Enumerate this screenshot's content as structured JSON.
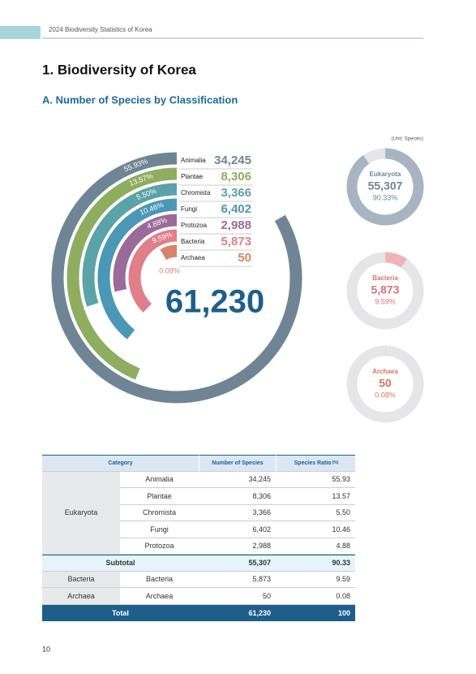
{
  "header": "2024 Biodiversity Statistics of Korea",
  "title": "1. Biodiversity of Korea",
  "subtitle": "A. Number of Species by Classification",
  "chart_data": [
    {
      "type": "radial-bar",
      "unit": "(Unit: Species)",
      "categories": [
        "Animalia",
        "Plantae",
        "Chromista",
        "Fungi",
        "Protozoa",
        "Bacteria",
        "Archaea"
      ],
      "counts": [
        "34,245",
        "8,306",
        "3,366",
        "6,402",
        "2,988",
        "5,873",
        "50"
      ],
      "values": [
        55.93,
        13.57,
        5.5,
        10.46,
        4.88,
        9.59,
        0.08
      ],
      "value_labels": [
        "55.93%",
        "13.57%",
        "5.50%",
        "10.46%",
        "4.88%",
        "9.59%",
        "0.08%"
      ],
      "colors": [
        "#6f8596",
        "#8fad5f",
        "#5aa3a8",
        "#4b97b6",
        "#9a6b9a",
        "#e07f8a",
        "#d9826a"
      ],
      "total": "61,230"
    },
    {
      "type": "donut",
      "categories": [
        "Eukaryota",
        "Bacteria",
        "Archaea"
      ],
      "counts": [
        "55,307",
        "5,873",
        "50"
      ],
      "values": [
        90.33,
        9.59,
        0.08
      ],
      "value_labels": [
        "90.33%",
        "9.59%",
        "0.08%"
      ],
      "colors": [
        "#a9b4c2",
        "#efb3b8",
        "#e0a08d"
      ],
      "text_colors": [
        "#6f8596",
        "#d9707c",
        "#d0785e"
      ]
    }
  ],
  "table": {
    "columns": [
      "Category",
      "Number of Species",
      "Species Ratio"
    ],
    "ratio_unit": "(%)",
    "group": "Eukaryota",
    "group_rows": [
      [
        "Animalia",
        "34,245",
        "55.93"
      ],
      [
        "Plantae",
        "8,306",
        "13.57"
      ],
      [
        "Chromista",
        "3,366",
        "5.50"
      ],
      [
        "Fungi",
        "6,402",
        "10.46"
      ],
      [
        "Protozoa",
        "2,988",
        "4.88"
      ]
    ],
    "subtotal": [
      "Subtotal",
      "55,307",
      "90.33"
    ],
    "rows": [
      [
        "Bacteria",
        "Bacteria",
        "5,873",
        "9.59"
      ],
      [
        "Archaea",
        "Archaea",
        "50",
        "0.08"
      ]
    ],
    "total": [
      "Total",
      "61,230",
      "100"
    ]
  },
  "page_number": "10"
}
